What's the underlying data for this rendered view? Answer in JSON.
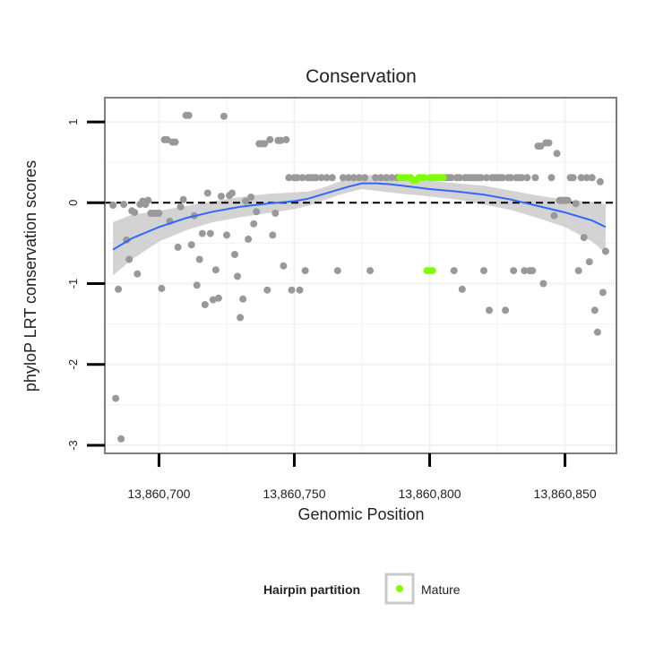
{
  "chart_data": {
    "type": "scatter",
    "title": "Conservation",
    "xlabel": "Genomic Position",
    "ylabel": "phyloP LRT conservation scores",
    "xlim": [
      13860680,
      13860869
    ],
    "ylim": [
      -3.1,
      1.3
    ],
    "xticks": [
      13860700,
      13860750,
      13860800,
      13860850
    ],
    "xtick_labels": [
      "13,860,700",
      "13,860,750",
      "13,860,800",
      "13,860,850"
    ],
    "yticks": [
      -3,
      -2,
      -1,
      0,
      1
    ],
    "ytick_labels": [
      "-3",
      "-2",
      "-1",
      "0",
      "1"
    ],
    "grid": true,
    "reference_line": {
      "y": 0,
      "style": "dashed"
    },
    "colors": {
      "points": "#999999",
      "mature": "#7FFF00",
      "smooth_line": "#3366FF",
      "confidence_band": "#C8C8C8",
      "panel_border": "#7f7f7f",
      "grid": "#F2F2F2"
    },
    "legend": {
      "title": "Hairpin partition",
      "position": "bottom",
      "entries": [
        {
          "label": "Mature",
          "color": "#7FFF00"
        }
      ]
    },
    "series": [
      {
        "points": [
          [
            13860683,
            -0.03
          ],
          [
            13860684,
            -2.42
          ],
          [
            13860685,
            -1.07
          ],
          [
            13860686,
            -2.92
          ],
          [
            13860687,
            -0.02
          ],
          [
            13860688,
            -0.46
          ],
          [
            13860689,
            -0.7
          ],
          [
            13860690,
            -0.1
          ],
          [
            13860691,
            -0.12
          ],
          [
            13860692,
            -0.88
          ],
          [
            13860693,
            -0.02
          ],
          [
            13860694,
            0.02
          ],
          [
            13860695,
            -0.02
          ],
          [
            13860696,
            0.03
          ],
          [
            13860697,
            -0.13
          ],
          [
            13860698,
            -0.13
          ],
          [
            13860699,
            -0.13
          ],
          [
            13860700,
            -0.13
          ],
          [
            13860701,
            -1.06
          ],
          [
            13860702,
            0.78
          ],
          [
            13860703,
            0.78
          ],
          [
            13860704,
            -0.23
          ],
          [
            13860705,
            0.75
          ],
          [
            13860706,
            0.75
          ],
          [
            13860707,
            -0.55
          ],
          [
            13860708,
            -0.05
          ],
          [
            13860709,
            0.04
          ],
          [
            13860710,
            1.08
          ],
          [
            13860711,
            1.08
          ],
          [
            13860712,
            -0.52
          ],
          [
            13860713,
            -0.16
          ],
          [
            13860714,
            -1.02
          ],
          [
            13860715,
            -0.7
          ],
          [
            13860716,
            -0.38
          ],
          [
            13860717,
            -1.26
          ],
          [
            13860718,
            0.12
          ],
          [
            13860719,
            -0.38
          ],
          [
            13860720,
            -1.2
          ],
          [
            13860721,
            -0.83
          ],
          [
            13860722,
            -1.18
          ],
          [
            13860723,
            0.08
          ],
          [
            13860724,
            1.07
          ],
          [
            13860725,
            -0.4
          ],
          [
            13860726,
            0.09
          ],
          [
            13860727,
            0.12
          ],
          [
            13860728,
            -0.64
          ],
          [
            13860729,
            -0.91
          ],
          [
            13860730,
            -1.42
          ],
          [
            13860731,
            -1.19
          ],
          [
            13860732,
            0.02
          ],
          [
            13860733,
            -0.45
          ],
          [
            13860734,
            0.07
          ],
          [
            13860735,
            -0.26
          ],
          [
            13860736,
            -0.11
          ],
          [
            13860737,
            0.73
          ],
          [
            13860738,
            0.73
          ],
          [
            13860739,
            0.73
          ],
          [
            13860740,
            -1.08
          ],
          [
            13860741,
            0.78
          ],
          [
            13860742,
            -0.4
          ],
          [
            13860743,
            -0.13
          ],
          [
            13860744,
            0.77
          ],
          [
            13860745,
            0.77
          ],
          [
            13860746,
            -0.78
          ],
          [
            13860747,
            0.78
          ],
          [
            13860748,
            0.31
          ],
          [
            13860749,
            -1.08
          ],
          [
            13860750,
            0.31
          ],
          [
            13860751,
            0.31
          ],
          [
            13860752,
            -1.08
          ],
          [
            13860753,
            0.31
          ],
          [
            13860754,
            -0.84
          ],
          [
            13860755,
            0.31
          ],
          [
            13860756,
            0.31
          ],
          [
            13860757,
            0.31
          ],
          [
            13860758,
            0.31
          ],
          [
            13860760,
            0.31
          ],
          [
            13860762,
            0.31
          ],
          [
            13860764,
            0.31
          ],
          [
            13860766,
            -0.84
          ],
          [
            13860768,
            0.31
          ],
          [
            13860770,
            0.31
          ],
          [
            13860772,
            0.31
          ],
          [
            13860774,
            0.31
          ],
          [
            13860776,
            0.31
          ],
          [
            13860778,
            -0.84
          ],
          [
            13860780,
            0.31
          ],
          [
            13860782,
            0.31
          ],
          [
            13860784,
            0.31
          ],
          [
            13860786,
            0.31
          ],
          [
            13860788,
            0.31
          ],
          [
            13860806,
            0.31
          ],
          [
            13860807,
            0.31
          ],
          [
            13860808,
            0.31
          ],
          [
            13860809,
            -0.84
          ],
          [
            13860810,
            0.31
          ],
          [
            13860811,
            0.31
          ],
          [
            13860812,
            -1.07
          ],
          [
            13860813,
            0.31
          ],
          [
            13860814,
            0.31
          ],
          [
            13860815,
            0.31
          ],
          [
            13860816,
            0.31
          ],
          [
            13860817,
            0.31
          ],
          [
            13860818,
            0.31
          ],
          [
            13860819,
            0.31
          ],
          [
            13860820,
            -0.84
          ],
          [
            13860821,
            0.31
          ],
          [
            13860822,
            -1.33
          ],
          [
            13860823,
            0.31
          ],
          [
            13860824,
            0.31
          ],
          [
            13860825,
            0.31
          ],
          [
            13860826,
            0.31
          ],
          [
            13860827,
            0.31
          ],
          [
            13860828,
            -1.33
          ],
          [
            13860829,
            0.31
          ],
          [
            13860830,
            0.31
          ],
          [
            13860831,
            -0.84
          ],
          [
            13860832,
            0.31
          ],
          [
            13860833,
            0.31
          ],
          [
            13860834,
            0.31
          ],
          [
            13860835,
            -0.84
          ],
          [
            13860836,
            0.31
          ],
          [
            13860837,
            -0.84
          ],
          [
            13860838,
            -0.84
          ],
          [
            13860839,
            0.31
          ],
          [
            13860840,
            0.7
          ],
          [
            13860841,
            0.7
          ],
          [
            13860842,
            -1.0
          ],
          [
            13860843,
            0.74
          ],
          [
            13860844,
            0.74
          ],
          [
            13860845,
            0.31
          ],
          [
            13860846,
            -0.16
          ],
          [
            13860847,
            0.61
          ],
          [
            13860848,
            0.03
          ],
          [
            13860849,
            0.03
          ],
          [
            13860850,
            0.03
          ],
          [
            13860851,
            0.03
          ],
          [
            13860852,
            0.31
          ],
          [
            13860853,
            0.31
          ],
          [
            13860854,
            -0.01
          ],
          [
            13860855,
            -0.84
          ],
          [
            13860856,
            0.31
          ],
          [
            13860857,
            -0.43
          ],
          [
            13860858,
            0.31
          ],
          [
            13860859,
            -0.73
          ],
          [
            13860860,
            0.31
          ],
          [
            13860861,
            -1.33
          ],
          [
            13860862,
            -1.6
          ],
          [
            13860863,
            0.26
          ],
          [
            13860864,
            -1.11
          ],
          [
            13860865,
            -0.6
          ]
        ]
      },
      {
        "name": "Mature",
        "points": [
          [
            13860789,
            0.31
          ],
          [
            13860790,
            0.31
          ],
          [
            13860791,
            0.31
          ],
          [
            13860792,
            0.31
          ],
          [
            13860793,
            0.31
          ],
          [
            13860794,
            0.28
          ],
          [
            13860795,
            0.28
          ],
          [
            13860796,
            0.31
          ],
          [
            13860797,
            0.31
          ],
          [
            13860798,
            0.31
          ],
          [
            13860799,
            -0.84
          ],
          [
            13860800,
            0.31
          ],
          [
            13860800,
            -0.84
          ],
          [
            13860801,
            0.31
          ],
          [
            13860801,
            -0.84
          ],
          [
            13860802,
            0.31
          ],
          [
            13860803,
            0.31
          ],
          [
            13860804,
            0.31
          ],
          [
            13860805,
            0.31
          ]
        ]
      }
    ],
    "smooth": {
      "x": [
        13860683,
        13860690,
        13860700,
        13860710,
        13860720,
        13860730,
        13860740,
        13860750,
        13860755,
        13860760,
        13860765,
        13860770,
        13860775,
        13860780,
        13860785,
        13860790,
        13860800,
        13860810,
        13860820,
        13860830,
        13860840,
        13860850,
        13860860,
        13860865
      ],
      "y": [
        -0.58,
        -0.44,
        -0.3,
        -0.19,
        -0.11,
        -0.05,
        -0.01,
        0.02,
        0.05,
        0.1,
        0.15,
        0.2,
        0.24,
        0.24,
        0.23,
        0.21,
        0.17,
        0.14,
        0.1,
        0.04,
        -0.04,
        -0.12,
        -0.22,
        -0.3
      ],
      "lo": [
        -0.9,
        -0.7,
        -0.48,
        -0.34,
        -0.24,
        -0.18,
        -0.13,
        -0.08,
        -0.04,
        0.02,
        0.08,
        0.13,
        0.17,
        0.15,
        0.13,
        0.11,
        0.08,
        0.04,
        -0.02,
        -0.09,
        -0.19,
        -0.3,
        -0.48,
        -0.62
      ],
      "hi": [
        -0.24,
        -0.15,
        -0.1,
        -0.04,
        0.02,
        0.07,
        0.11,
        0.13,
        0.14,
        0.18,
        0.24,
        0.3,
        0.33,
        0.35,
        0.34,
        0.31,
        0.27,
        0.24,
        0.21,
        0.15,
        0.09,
        0.04,
        0.01,
        -0.02
      ]
    }
  }
}
